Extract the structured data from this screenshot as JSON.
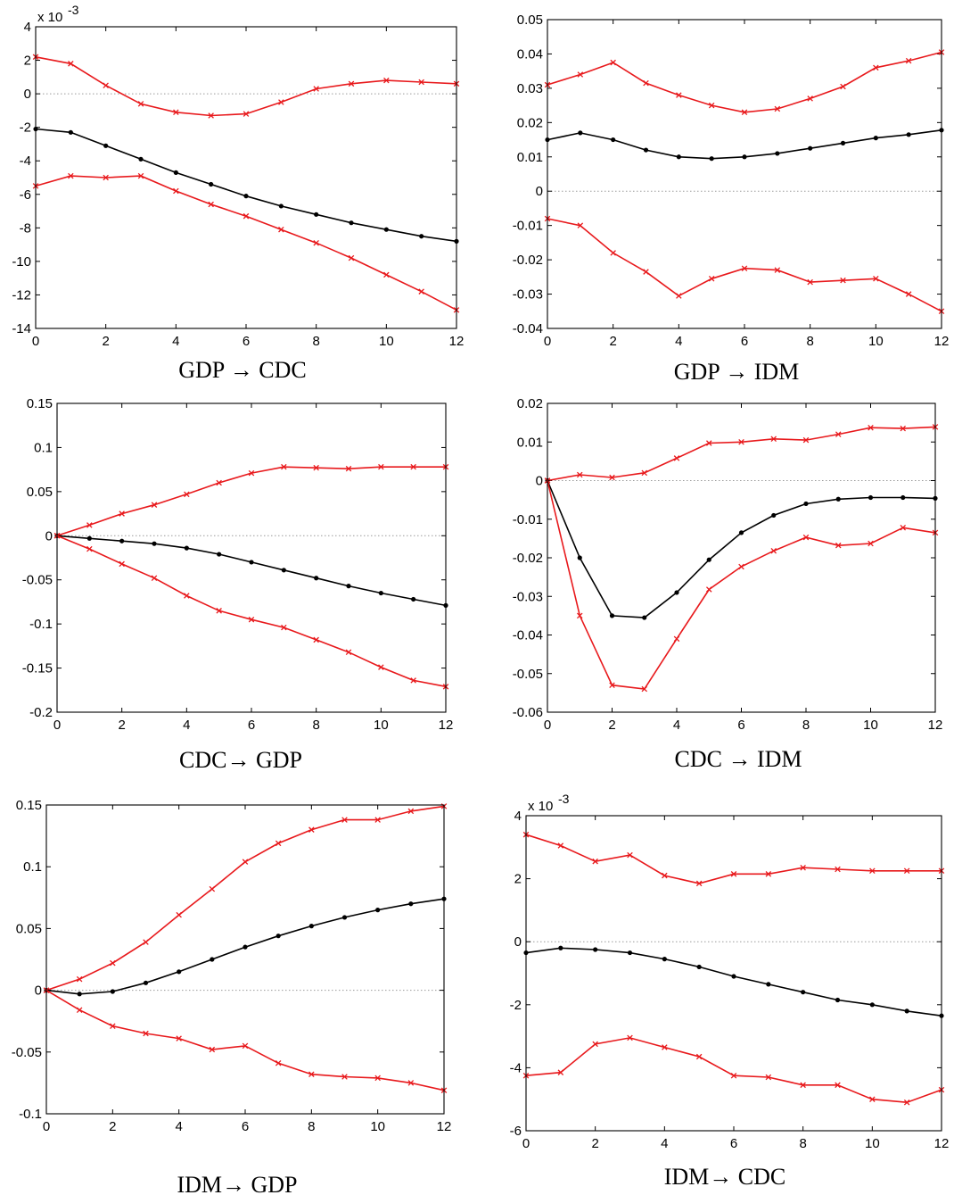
{
  "chart_data": [
    {
      "type": "line",
      "title": "GDP → CDC",
      "caption": "GDP → CDC",
      "multiplier": "x 10",
      "exponent": "-3",
      "x": [
        0,
        1,
        2,
        3,
        4,
        5,
        6,
        7,
        8,
        9,
        10,
        11,
        12
      ],
      "xticks": [
        0,
        2,
        4,
        6,
        8,
        10,
        12
      ],
      "xlim": [
        0,
        12
      ],
      "ylim": [
        -14,
        4
      ],
      "yticks": [
        -14,
        -12,
        -10,
        -8,
        -6,
        -4,
        -2,
        0,
        2,
        4
      ],
      "yticklabels": [
        "-14",
        "-12",
        "-10",
        "-8",
        "-6",
        "-4",
        "-2",
        "0",
        "2",
        "4"
      ],
      "series": [
        {
          "name": "upper",
          "color": "#e8191c",
          "marker": "x",
          "values": [
            2.2,
            1.8,
            0.5,
            -0.6,
            -1.1,
            -1.3,
            -1.2,
            -0.5,
            0.3,
            0.6,
            0.8,
            0.7,
            0.6
          ]
        },
        {
          "name": "response",
          "color": "#000000",
          "marker": "dot",
          "values": [
            -2.1,
            -2.3,
            -3.1,
            -3.9,
            -4.7,
            -5.4,
            -6.1,
            -6.7,
            -7.2,
            -7.7,
            -8.1,
            -8.5,
            -8.8
          ]
        },
        {
          "name": "lower",
          "color": "#e8191c",
          "marker": "x",
          "values": [
            -5.5,
            -4.9,
            -5.0,
            -4.9,
            -5.8,
            -6.6,
            -7.3,
            -8.1,
            -8.9,
            -9.8,
            -10.8,
            -11.8,
            -12.9
          ]
        }
      ]
    },
    {
      "type": "line",
      "title": "GDP → IDM",
      "caption": "GDP → IDM",
      "multiplier": "",
      "exponent": "",
      "x": [
        0,
        1,
        2,
        3,
        4,
        5,
        6,
        7,
        8,
        9,
        10,
        11,
        12
      ],
      "xticks": [
        0,
        2,
        4,
        6,
        8,
        10,
        12
      ],
      "xlim": [
        0,
        12
      ],
      "ylim": [
        -0.04,
        0.05
      ],
      "yticks": [
        -0.04,
        -0.03,
        -0.02,
        -0.01,
        0,
        0.01,
        0.02,
        0.03,
        0.04,
        0.05
      ],
      "yticklabels": [
        "-0.04",
        "-0.03",
        "-0.02",
        "-0.01",
        "0",
        "0.01",
        "0.02",
        "0.03",
        "0.04",
        "0.05"
      ],
      "series": [
        {
          "name": "upper",
          "color": "#e8191c",
          "marker": "x",
          "values": [
            0.031,
            0.034,
            0.0375,
            0.0315,
            0.028,
            0.025,
            0.023,
            0.024,
            0.027,
            0.0305,
            0.036,
            0.038,
            0.0405
          ]
        },
        {
          "name": "response",
          "color": "#000000",
          "marker": "dot",
          "values": [
            0.015,
            0.017,
            0.015,
            0.012,
            0.01,
            0.0095,
            0.01,
            0.011,
            0.0125,
            0.014,
            0.0155,
            0.0165,
            0.0178
          ]
        },
        {
          "name": "lower",
          "color": "#e8191c",
          "marker": "x",
          "values": [
            -0.008,
            -0.01,
            -0.018,
            -0.0235,
            -0.0305,
            -0.0255,
            -0.0225,
            -0.023,
            -0.0265,
            -0.026,
            -0.0255,
            -0.03,
            -0.035
          ]
        }
      ]
    },
    {
      "type": "line",
      "title": "CDC→ GDP",
      "caption": "CDC→ GDP",
      "multiplier": "",
      "exponent": "",
      "x": [
        0,
        1,
        2,
        3,
        4,
        5,
        6,
        7,
        8,
        9,
        10,
        11,
        12
      ],
      "xticks": [
        0,
        2,
        4,
        6,
        8,
        10,
        12
      ],
      "xlim": [
        0,
        12
      ],
      "ylim": [
        -0.2,
        0.15
      ],
      "yticks": [
        -0.2,
        -0.15,
        -0.1,
        -0.05,
        0,
        0.05,
        0.1,
        0.15
      ],
      "yticklabels": [
        "-0.2",
        "-0.15",
        "-0.1",
        "-0.05",
        "0",
        "0.05",
        "0.1",
        "0.15"
      ],
      "series": [
        {
          "name": "upper",
          "color": "#e8191c",
          "marker": "x",
          "values": [
            0,
            0.012,
            0.025,
            0.035,
            0.047,
            0.06,
            0.071,
            0.078,
            0.077,
            0.076,
            0.078,
            0.078,
            0.078
          ]
        },
        {
          "name": "response",
          "color": "#000000",
          "marker": "dot",
          "values": [
            0,
            -0.003,
            -0.006,
            -0.009,
            -0.014,
            -0.021,
            -0.03,
            -0.039,
            -0.048,
            -0.057,
            -0.065,
            -0.072,
            -0.079
          ]
        },
        {
          "name": "lower",
          "color": "#e8191c",
          "marker": "x",
          "values": [
            0,
            -0.015,
            -0.032,
            -0.048,
            -0.068,
            -0.085,
            -0.095,
            -0.104,
            -0.118,
            -0.132,
            -0.149,
            -0.164,
            -0.171
          ]
        }
      ]
    },
    {
      "type": "line",
      "title": "CDC → IDM",
      "caption": "CDC → IDM",
      "multiplier": "",
      "exponent": "",
      "x": [
        0,
        1,
        2,
        3,
        4,
        5,
        6,
        7,
        8,
        9,
        10,
        11,
        12
      ],
      "xticks": [
        0,
        2,
        4,
        6,
        8,
        10,
        12
      ],
      "xlim": [
        0,
        12
      ],
      "ylim": [
        -0.06,
        0.02
      ],
      "yticks": [
        -0.06,
        -0.05,
        -0.04,
        -0.03,
        -0.02,
        -0.01,
        0,
        0.01,
        0.02
      ],
      "yticklabels": [
        "-0.06",
        "-0.05",
        "-0.04",
        "-0.03",
        "-0.02",
        "-0.01",
        "0",
        "0.01",
        "0.02"
      ],
      "series": [
        {
          "name": "upper",
          "color": "#e8191c",
          "marker": "x",
          "values": [
            0,
            0.0015,
            0.0008,
            0.002,
            0.0058,
            0.0097,
            0.01,
            0.0108,
            0.0105,
            0.012,
            0.0137,
            0.0135,
            0.0139
          ]
        },
        {
          "name": "response",
          "color": "#000000",
          "marker": "dot",
          "values": [
            0,
            -0.02,
            -0.035,
            -0.0355,
            -0.029,
            -0.0205,
            -0.0135,
            -0.009,
            -0.006,
            -0.0048,
            -0.0044,
            -0.0044,
            -0.0046
          ]
        },
        {
          "name": "lower",
          "color": "#e8191c",
          "marker": "x",
          "values": [
            0,
            -0.035,
            -0.053,
            -0.054,
            -0.041,
            -0.0282,
            -0.0223,
            -0.0182,
            -0.0147,
            -0.0168,
            -0.0163,
            -0.0122,
            -0.0135
          ]
        }
      ]
    },
    {
      "type": "line",
      "title": "IDM→ GDP",
      "caption": "IDM→ GDP",
      "multiplier": "",
      "exponent": "",
      "x": [
        0,
        1,
        2,
        3,
        4,
        5,
        6,
        7,
        8,
        9,
        10,
        11,
        12
      ],
      "xticks": [
        0,
        2,
        4,
        6,
        8,
        10,
        12
      ],
      "xlim": [
        0,
        12
      ],
      "ylim": [
        -0.1,
        0.15
      ],
      "yticks": [
        -0.1,
        -0.05,
        0,
        0.05,
        0.1,
        0.15
      ],
      "yticklabels": [
        "-0.1",
        "-0.05",
        "0",
        "0.05",
        "0.1",
        "0.15"
      ],
      "series": [
        {
          "name": "upper",
          "color": "#e8191c",
          "marker": "x",
          "values": [
            0,
            0.009,
            0.022,
            0.039,
            0.061,
            0.082,
            0.104,
            0.119,
            0.13,
            0.138,
            0.138,
            0.145,
            0.149
          ]
        },
        {
          "name": "response",
          "color": "#000000",
          "marker": "dot",
          "values": [
            0,
            -0.003,
            -0.001,
            0.006,
            0.015,
            0.025,
            0.035,
            0.044,
            0.052,
            0.059,
            0.065,
            0.07,
            0.074
          ]
        },
        {
          "name": "lower",
          "color": "#e8191c",
          "marker": "x",
          "values": [
            0,
            -0.016,
            -0.029,
            -0.035,
            -0.039,
            -0.048,
            -0.045,
            -0.059,
            -0.068,
            -0.07,
            -0.071,
            -0.075,
            -0.081
          ]
        }
      ]
    },
    {
      "type": "line",
      "title": "IDM→ CDC",
      "caption": "IDM→ CDC",
      "multiplier": "x 10",
      "exponent": "-3",
      "x": [
        0,
        1,
        2,
        3,
        4,
        5,
        6,
        7,
        8,
        9,
        10,
        11,
        12
      ],
      "xticks": [
        0,
        2,
        4,
        6,
        8,
        10,
        12
      ],
      "xlim": [
        0,
        12
      ],
      "ylim": [
        -6,
        4
      ],
      "yticks": [
        -6,
        -4,
        -2,
        0,
        2,
        4
      ],
      "yticklabels": [
        "-6",
        "-4",
        "-2",
        "0",
        "2",
        "4"
      ],
      "series": [
        {
          "name": "upper",
          "color": "#e8191c",
          "marker": "x",
          "values": [
            3.4,
            3.05,
            2.55,
            2.75,
            2.1,
            1.85,
            2.15,
            2.15,
            2.35,
            2.3,
            2.25,
            2.25,
            2.25
          ]
        },
        {
          "name": "response",
          "color": "#000000",
          "marker": "dot",
          "values": [
            -0.35,
            -0.2,
            -0.25,
            -0.35,
            -0.55,
            -0.8,
            -1.1,
            -1.35,
            -1.6,
            -1.85,
            -2.0,
            -2.2,
            -2.35
          ]
        },
        {
          "name": "lower",
          "color": "#e8191c",
          "marker": "x",
          "values": [
            -4.25,
            -4.15,
            -3.25,
            -3.05,
            -3.35,
            -3.65,
            -4.25,
            -4.3,
            -4.55,
            -4.55,
            -5.0,
            -5.1,
            -4.7
          ]
        }
      ]
    }
  ]
}
